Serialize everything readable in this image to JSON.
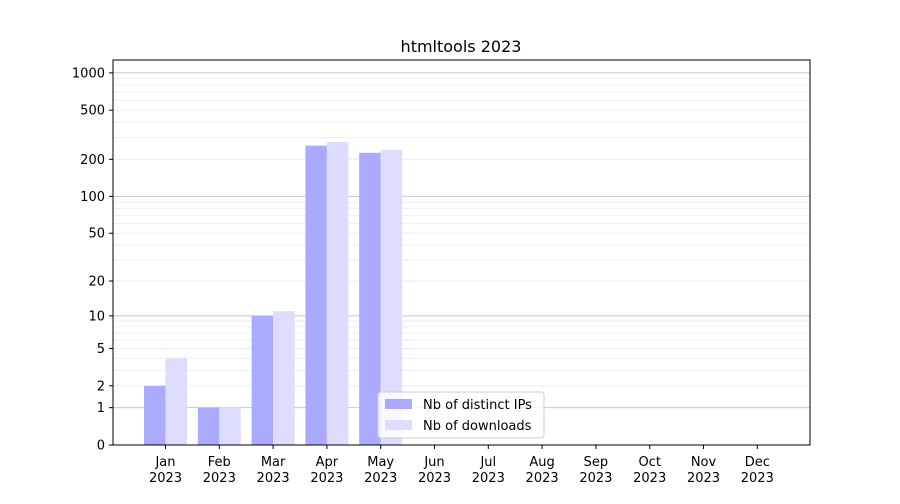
{
  "chart_data": {
    "type": "bar",
    "title": "htmltools 2023",
    "xlabel": "",
    "ylabel": "",
    "yscale": "log(1+y)",
    "ylim": [
      0,
      1270
    ],
    "yticks": [
      0,
      1,
      2,
      5,
      10,
      20,
      50,
      100,
      200,
      500,
      1000
    ],
    "grid": true,
    "legend_position": "lower-center",
    "categories": [
      [
        "Jan",
        "2023"
      ],
      [
        "Feb",
        "2023"
      ],
      [
        "Mar",
        "2023"
      ],
      [
        "Apr",
        "2023"
      ],
      [
        "May",
        "2023"
      ],
      [
        "Jun",
        "2023"
      ],
      [
        "Jul",
        "2023"
      ],
      [
        "Aug",
        "2023"
      ],
      [
        "Sep",
        "2023"
      ],
      [
        "Oct",
        "2023"
      ],
      [
        "Nov",
        "2023"
      ],
      [
        "Dec",
        "2023"
      ]
    ],
    "series": [
      {
        "name": "Nb of distinct IPs",
        "color": "#aaaaff",
        "values": [
          2,
          1,
          10,
          258,
          226,
          0,
          0,
          0,
          0,
          0,
          0,
          0
        ]
      },
      {
        "name": "Nb of downloads",
        "color": "#ddddff",
        "values": [
          4,
          1,
          11,
          277,
          239,
          0,
          0,
          0,
          0,
          0,
          0,
          0
        ]
      }
    ]
  }
}
